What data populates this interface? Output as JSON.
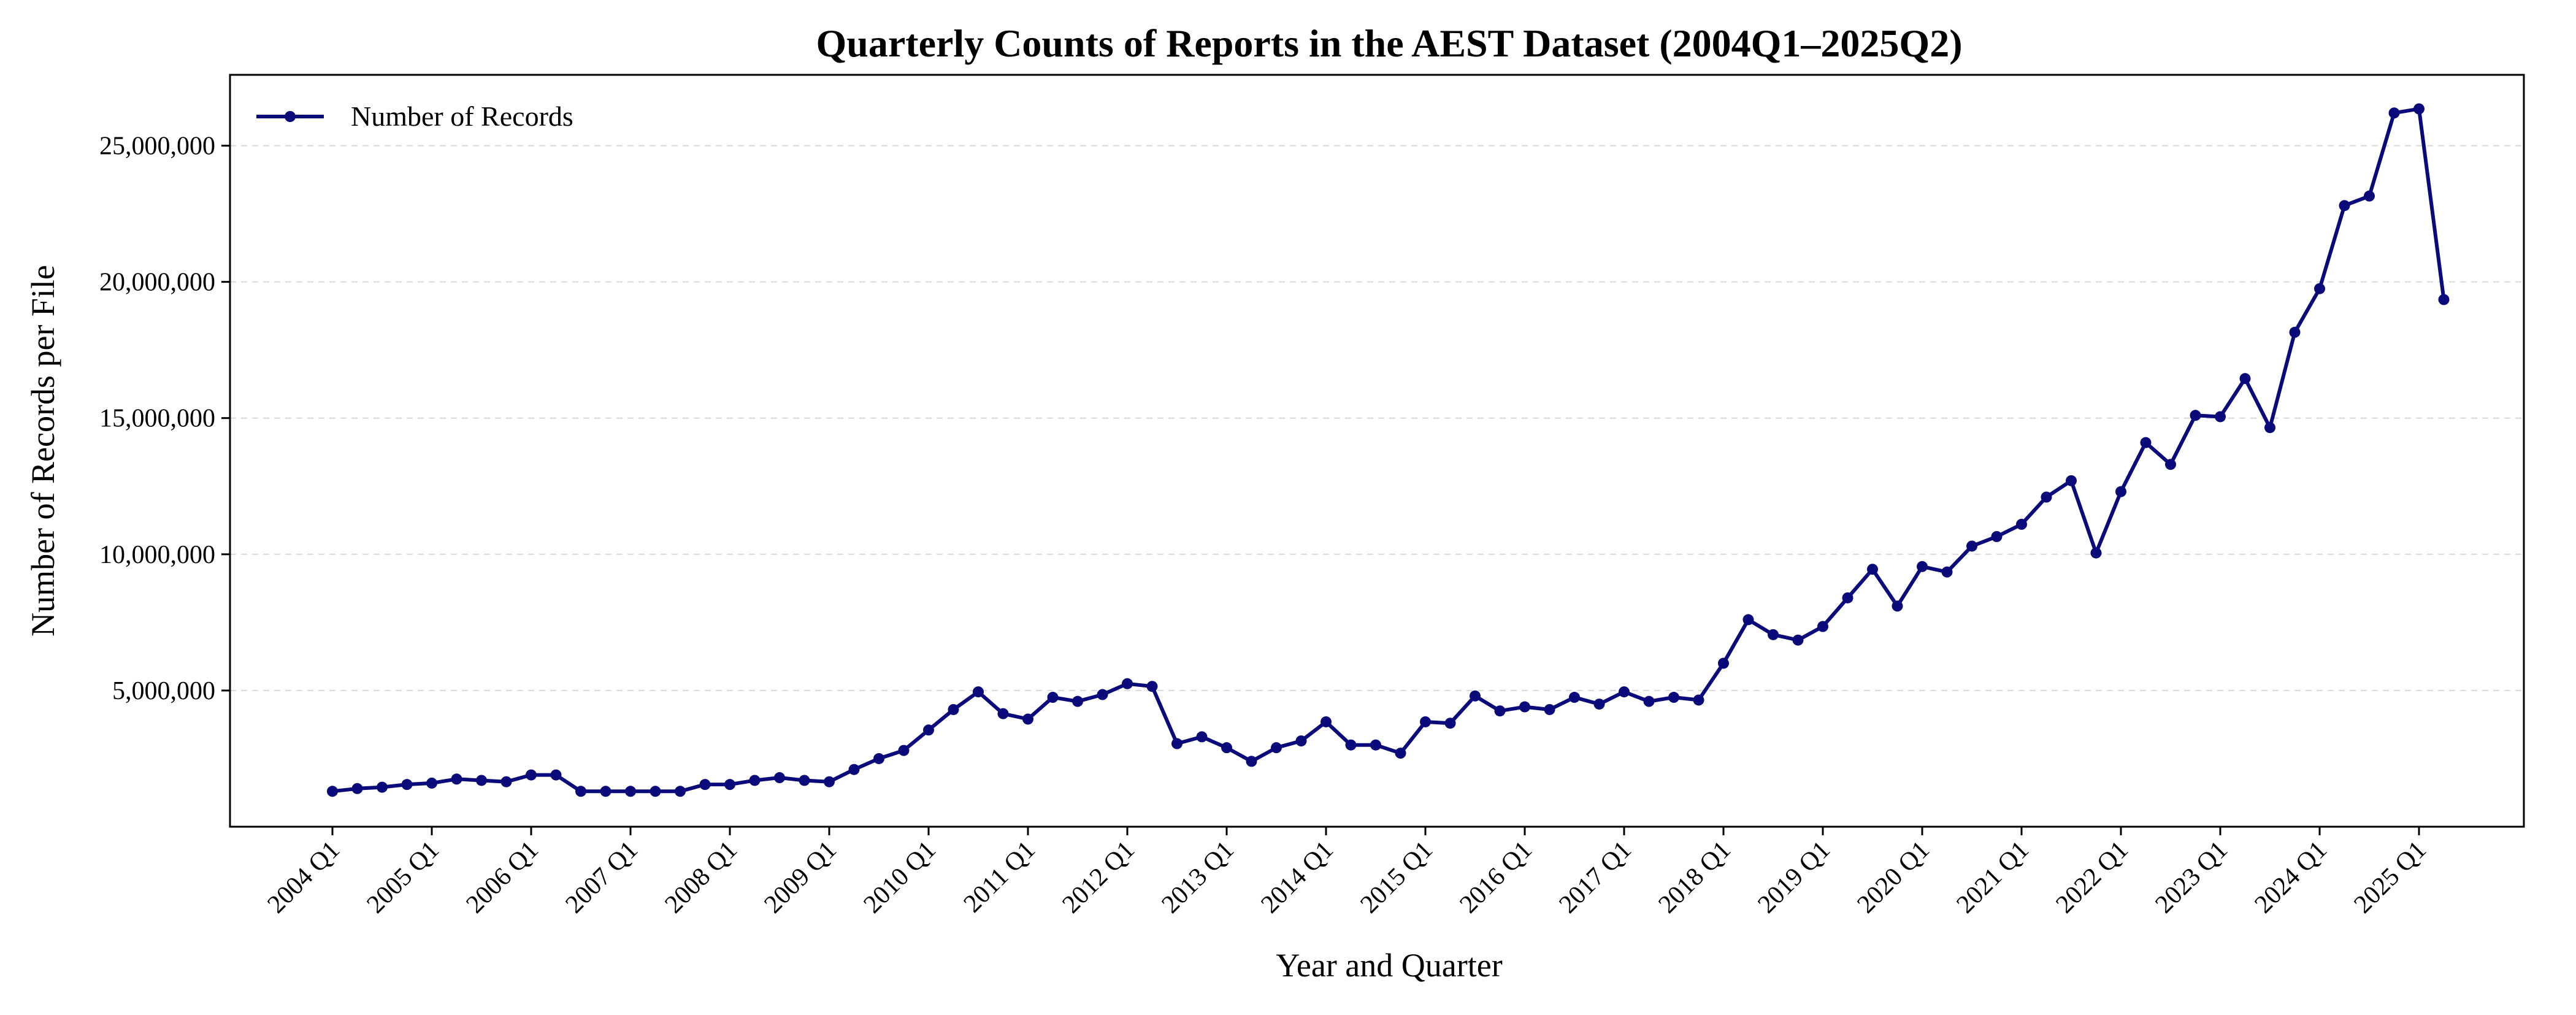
{
  "chart_data": {
    "type": "line",
    "title": "Quarterly Counts of Reports in the AEST Dataset (2004Q1–2025Q2)",
    "xlabel": "Year and Quarter",
    "ylabel": "Number of Records per File",
    "ylim": [
      0,
      27600000
    ],
    "grid": "horizontal-dashed",
    "legend_position": "top-left",
    "x_tick_labels": [
      "2004 Q1",
      "2005 Q1",
      "2006 Q1",
      "2007 Q1",
      "2008 Q1",
      "2009 Q1",
      "2010 Q1",
      "2011 Q1",
      "2012 Q1",
      "2013 Q1",
      "2014 Q1",
      "2015 Q1",
      "2016 Q1",
      "2017 Q1",
      "2018 Q1",
      "2019 Q1",
      "2020 Q1",
      "2021 Q1",
      "2022 Q1",
      "2023 Q1",
      "2024 Q1",
      "2025 Q1"
    ],
    "y_ticks": [
      5000000,
      10000000,
      15000000,
      20000000,
      25000000
    ],
    "y_tick_labels": [
      "5,000,000",
      "10,000,000",
      "15,000,000",
      "20,000,000",
      "25,000,000"
    ],
    "series": [
      {
        "name": "Number of Records",
        "color": "#0a0a7a",
        "values": [
          1300000,
          1400000,
          1450000,
          1550000,
          1600000,
          1750000,
          1700000,
          1650000,
          1900000,
          1900000,
          1300000,
          1300000,
          1300000,
          1300000,
          1300000,
          1550000,
          1550000,
          1700000,
          1800000,
          1700000,
          1650000,
          2100000,
          2500000,
          2800000,
          3550000,
          4300000,
          4950000,
          4150000,
          3950000,
          4750000,
          4600000,
          4850000,
          5250000,
          5150000,
          3050000,
          3300000,
          2900000,
          2400000,
          2900000,
          3150000,
          3850000,
          3000000,
          3000000,
          2700000,
          3850000,
          3800000,
          4800000,
          4250000,
          4400000,
          4300000,
          4750000,
          4500000,
          4950000,
          4600000,
          4750000,
          4650000,
          6000000,
          7600000,
          7050000,
          6850000,
          7350000,
          8400000,
          9450000,
          8100000,
          9550000,
          9350000,
          10300000,
          10650000,
          11100000,
          12100000,
          12700000,
          10050000,
          12300000,
          14100000,
          13300000,
          15100000,
          15050000,
          16450000,
          14650000,
          18150000,
          19750000,
          22800000,
          23150000,
          26200000,
          26350000,
          19350000
        ]
      }
    ]
  }
}
